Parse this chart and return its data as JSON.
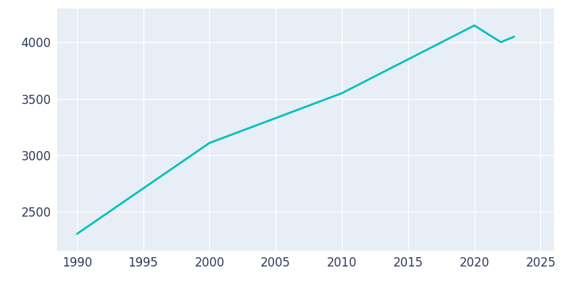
{
  "years": [
    1990,
    2000,
    2010,
    2020,
    2021,
    2022,
    2023
  ],
  "population": [
    2300,
    3107,
    3549,
    4150,
    4075,
    4002,
    4050
  ],
  "line_color": "#00BFBF",
  "bg_color": "#E8EEF5",
  "fig_bg_color": "#FFFFFF",
  "grid_color": "#FFFFFF",
  "text_color": "#2E3A5C",
  "xlim": [
    1988.5,
    2026
  ],
  "ylim": [
    2150,
    4300
  ],
  "xticks": [
    1990,
    1995,
    2000,
    2005,
    2010,
    2015,
    2020,
    2025
  ],
  "yticks": [
    2500,
    3000,
    3500,
    4000
  ],
  "linewidth": 2.0,
  "figsize": [
    8.0,
    4.0
  ],
  "dpi": 100
}
